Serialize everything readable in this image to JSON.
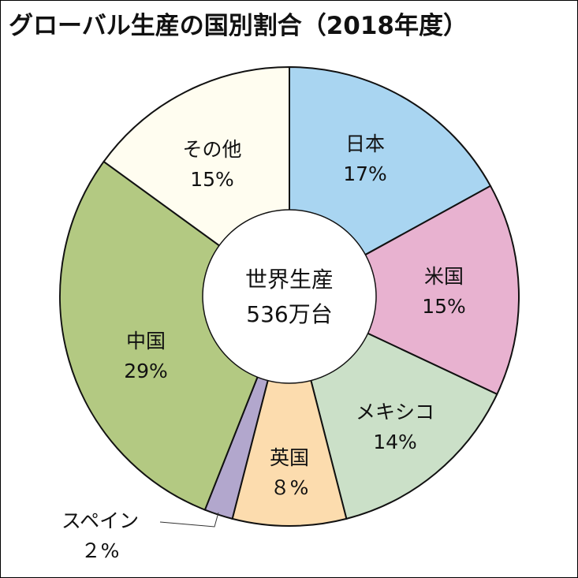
{
  "title": "グローバル生産の国別割合（2018年度）",
  "chart_data": {
    "type": "pie",
    "title": "グローバル生産の国別割合（2018年度）",
    "center_label": [
      "世界生産",
      "536万台"
    ],
    "slices": [
      {
        "name": "日本",
        "value": 17,
        "value_label": "17%",
        "color": "#a9d5f1"
      },
      {
        "name": "米国",
        "value": 15,
        "value_label": "15%",
        "color": "#e8b2d0"
      },
      {
        "name": "メキシコ",
        "value": 14,
        "value_label": "14%",
        "color": "#cbe0c8"
      },
      {
        "name": "英国",
        "value": 8,
        "value_label": "８%",
        "color": "#fcdcae"
      },
      {
        "name": "スペイン",
        "value": 2,
        "value_label": "２%",
        "color": "#b2a7cd"
      },
      {
        "name": "中国",
        "value": 29,
        "value_label": "29%",
        "color": "#b3c982"
      },
      {
        "name": "その他",
        "value": 15,
        "value_label": "15%",
        "color": "#fffdf0"
      }
    ]
  }
}
